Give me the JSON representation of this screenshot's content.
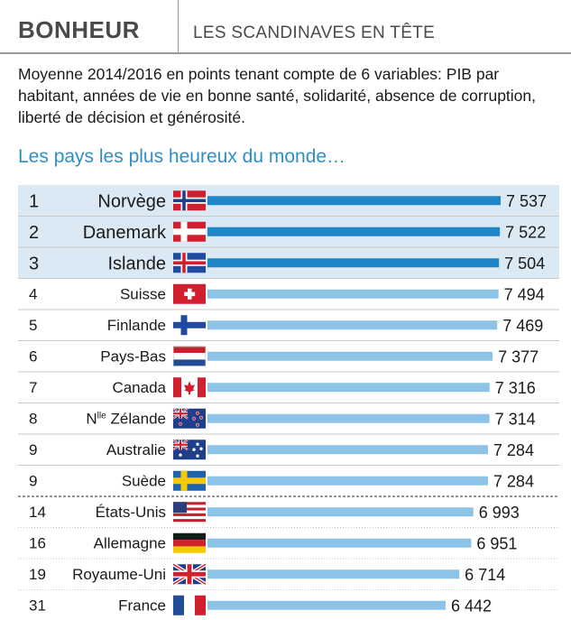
{
  "header": {
    "kicker": "BONHEUR",
    "headline": "LES SCANDINAVES EN TÊTE"
  },
  "intro": "Moyenne 2014/2016 en points tenant compte de 6 variables: PIB par habitant, années de vie en bonne santé, solidarité, absence de corruption, liberté de décision et générosité.",
  "subtitle": "Les pays les plus heureux du monde…",
  "colors": {
    "bar_top3": "#1f86c8",
    "bar_other": "#8cc3e6",
    "highlight_band": "#dbe9f5",
    "subtitle": "#2e8fc7"
  },
  "chart_data": {
    "type": "bar",
    "orientation": "horizontal",
    "value_label_format": "thin space thousands separator",
    "rows": [
      {
        "rank": "1",
        "country": "Norvège",
        "flag": "norway-flag",
        "value": 7537,
        "label": "7 537",
        "highlight": true
      },
      {
        "rank": "2",
        "country": "Danemark",
        "flag": "denmark-flag",
        "value": 7522,
        "label": "7 522",
        "highlight": true
      },
      {
        "rank": "3",
        "country": "Islande",
        "flag": "iceland-flag",
        "value": 7504,
        "label": "7 504",
        "highlight": true
      },
      {
        "rank": "4",
        "country": "Suisse",
        "flag": "switzerland-flag",
        "value": 7494,
        "label": "7 494",
        "highlight": false
      },
      {
        "rank": "5",
        "country": "Finlande",
        "flag": "finland-flag",
        "value": 7469,
        "label": "7 469",
        "highlight": false
      },
      {
        "rank": "6",
        "country": "Pays-Bas",
        "flag": "netherlands-flag",
        "value": 7377,
        "label": "7 377",
        "highlight": false
      },
      {
        "rank": "7",
        "country": "Canada",
        "flag": "canada-flag",
        "value": 7316,
        "label": "7 316",
        "highlight": false
      },
      {
        "rank": "8",
        "country": "Nlle Zélande",
        "country_sup": "lle",
        "country_prefix": "N",
        "country_suffix": " Zélande",
        "flag": "new-zealand-flag",
        "value": 7314,
        "label": "7 314",
        "highlight": false
      },
      {
        "rank": "9",
        "country": "Australie",
        "flag": "australia-flag",
        "value": 7284,
        "label": "7 284",
        "highlight": false
      },
      {
        "rank": "9",
        "country": "Suède",
        "flag": "sweden-flag",
        "value": 7284,
        "label": "7 284",
        "highlight": false
      },
      {
        "rank": "14",
        "country": "États-Unis",
        "flag": "usa-flag",
        "value": 6993,
        "label": "6 993",
        "highlight": false
      },
      {
        "rank": "16",
        "country": "Allemagne",
        "flag": "germany-flag",
        "value": 6951,
        "label": "6 951",
        "highlight": false
      },
      {
        "rank": "19",
        "country": "Royaume-Uni",
        "flag": "uk-flag",
        "value": 6714,
        "label": "6 714",
        "highlight": false
      },
      {
        "rank": "31",
        "country": "France",
        "flag": "france-flag",
        "value": 6442,
        "label": "6 442",
        "highlight": false
      }
    ]
  }
}
